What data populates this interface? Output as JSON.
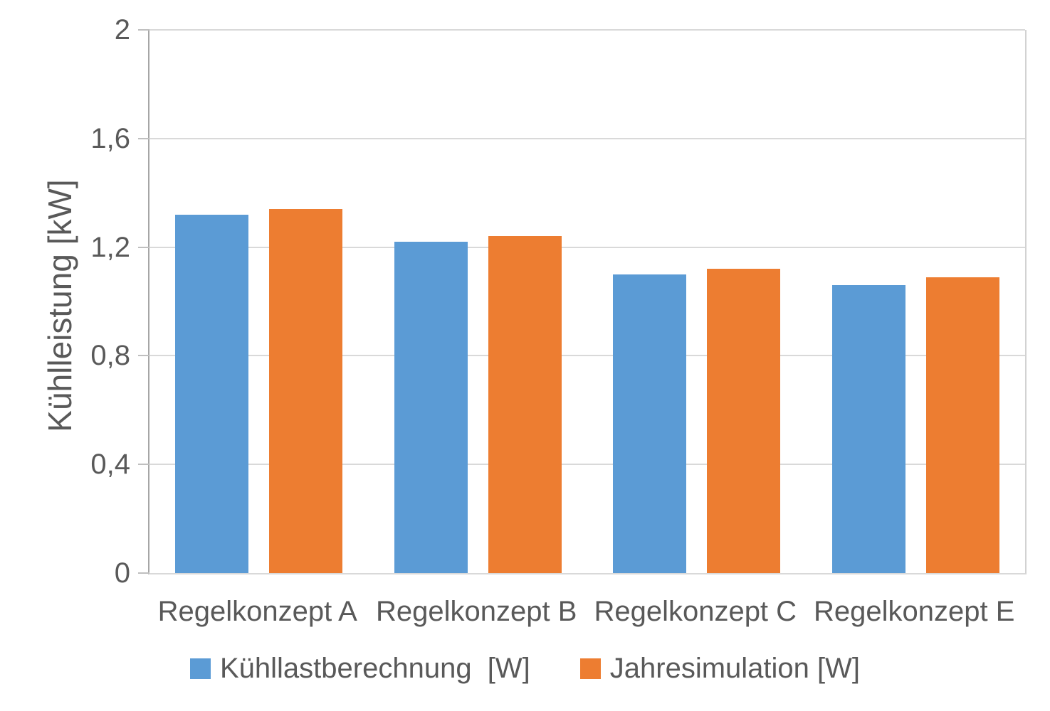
{
  "chart_data": {
    "type": "bar",
    "categories": [
      "Regelkonzept A",
      "Regelkonzept B",
      "Regelkonzept C",
      "Regelkonzept E"
    ],
    "series": [
      {
        "name": "Kühllastberechnung  [W]",
        "color": "#5B9BD5",
        "values": [
          1.32,
          1.22,
          1.1,
          1.06
        ]
      },
      {
        "name": "Jahresimulation [W]",
        "color": "#ED7D31",
        "values": [
          1.34,
          1.24,
          1.12,
          1.09
        ]
      }
    ],
    "title": "",
    "xlabel": "",
    "ylabel": "Kühlleistung [kW]",
    "ylim": [
      0,
      2
    ],
    "yticks": [
      {
        "value": 0,
        "label": "0"
      },
      {
        "value": 0.4,
        "label": "0,4"
      },
      {
        "value": 0.8,
        "label": "0,8"
      },
      {
        "value": 1.2,
        "label": "1,2"
      },
      {
        "value": 1.6,
        "label": "1,6"
      },
      {
        "value": 2,
        "label": "2"
      }
    ],
    "grid": true,
    "legend_position": "bottom"
  },
  "colors": {
    "series_blue": "#5B9BD5",
    "series_orange": "#ED7D31",
    "text": "#595959",
    "gridline": "#D9D9D9",
    "axis_line": "#A6A6A6"
  }
}
